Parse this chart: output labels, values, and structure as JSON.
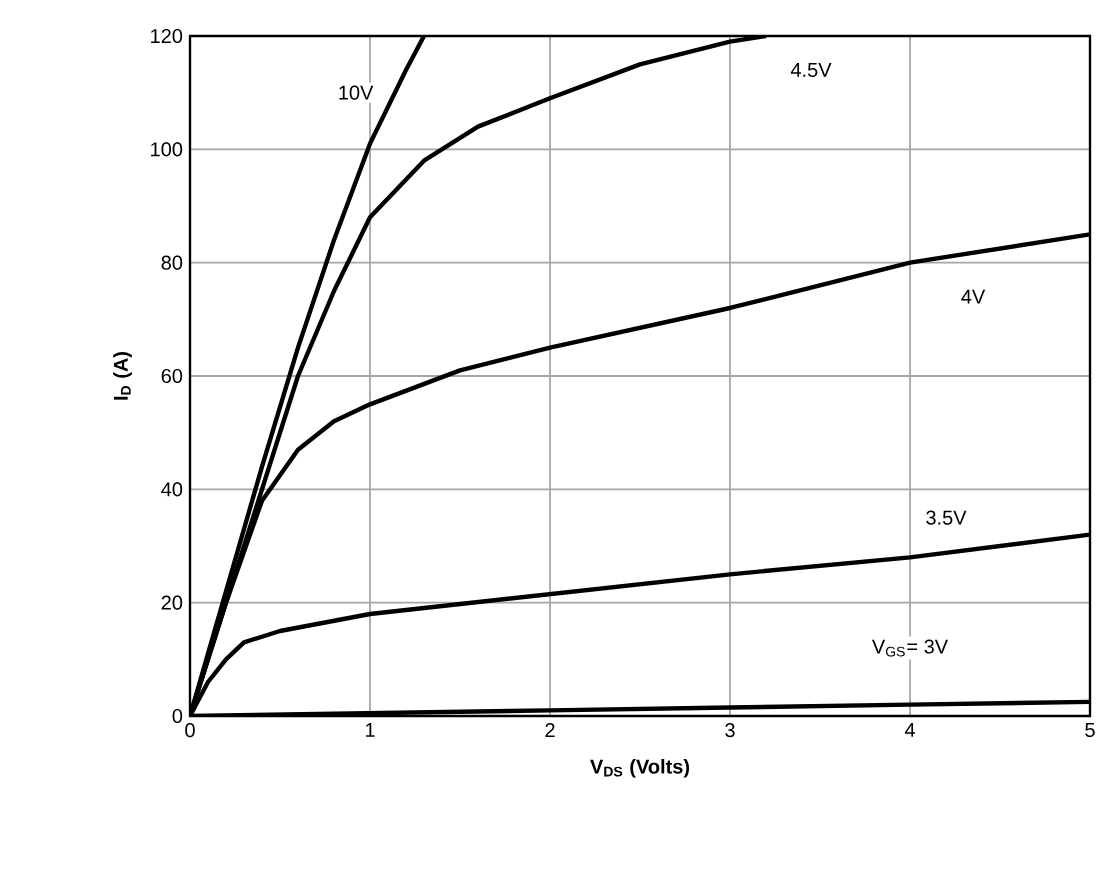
{
  "chart_data": {
    "type": "line",
    "xlabel": "**V$_{DS}$ (Volts)**",
    "ylabel": "**I$_{D}$ (A)**",
    "xlim": [
      0,
      5
    ],
    "ylim": [
      0,
      120
    ],
    "xticks": [
      0,
      1,
      2,
      3,
      4,
      5
    ],
    "yticks": [
      0,
      20,
      40,
      60,
      80,
      100,
      120
    ],
    "grid": true,
    "marker": "none",
    "line_style": "solid",
    "series": [
      {
        "name": "10V",
        "color": "#000000",
        "x": [
          0,
          0.2,
          0.4,
          0.6,
          0.8,
          1.0,
          1.2,
          1.3
        ],
        "values": [
          0,
          22,
          44,
          65,
          84,
          101,
          114,
          120
        ]
      },
      {
        "name": "4.5V",
        "color": "#000000",
        "x": [
          0,
          0.2,
          0.4,
          0.6,
          0.8,
          1.0,
          1.3,
          1.6,
          2,
          2.5,
          3,
          3.2
        ],
        "values": [
          0,
          20,
          40,
          60,
          75,
          88,
          98,
          104,
          109,
          115,
          119,
          120
        ]
      },
      {
        "name": "4V",
        "color": "#000000",
        "x": [
          0,
          0.2,
          0.4,
          0.6,
          0.8,
          1.0,
          1.5,
          2,
          3,
          4,
          5
        ],
        "values": [
          0,
          20,
          38,
          47,
          52,
          55,
          61,
          65,
          72,
          80,
          85
        ]
      },
      {
        "name": "3.5V",
        "color": "#000000",
        "x": [
          0,
          0.1,
          0.2,
          0.3,
          0.5,
          1,
          2,
          3,
          4,
          5
        ],
        "values": [
          0,
          6,
          10,
          13,
          15,
          18,
          21.5,
          25,
          28,
          32
        ]
      },
      {
        "name": "V$_{GS}$= 3V",
        "color": "#000000",
        "x": [
          0,
          1,
          2,
          3,
          4,
          5
        ],
        "values": [
          0,
          0.5,
          1,
          1.5,
          2,
          2.5
        ]
      }
    ]
  }
}
